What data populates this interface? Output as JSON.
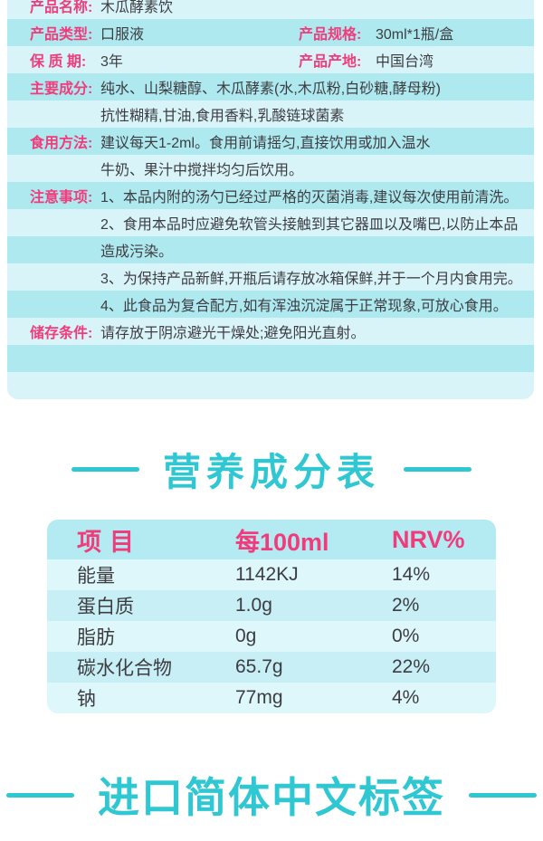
{
  "colors": {
    "pink": "#f13c7b",
    "teal": "#2fc7d2",
    "ink": "#3d3d41",
    "stripe-light": "#d9f4f9",
    "stripe-dark": "#aee9f0",
    "nut-header": "#b4eaf2",
    "nut-light": "#ddf7fb",
    "nut-dark": "#c7eff5"
  },
  "info_table": {
    "rows": [
      {
        "label": "产品名称:",
        "value": "木瓜酵素饮"
      },
      {
        "label": "产品类型:",
        "value": "口服液",
        "label2": "产品规格:",
        "value2": "30ml*1瓶/盒"
      },
      {
        "label": "保 质 期:",
        "value": "3年",
        "label2": "产品产地:",
        "value2": "中国台湾"
      },
      {
        "label": "主要成分:",
        "value": "纯水、山梨糖醇、木瓜酵素(水,木瓜粉,白砂糖,酵母粉)"
      },
      {
        "value": "抗性糊精,甘油,食用香料,乳酸链球菌素"
      },
      {
        "label": "食用方法:",
        "value": "建议每天1-2ml。食用前请摇匀,直接饮用或加入温水"
      },
      {
        "value": "牛奶、果汁中搅拌均匀后饮用。"
      },
      {
        "label": "注意事项:",
        "value": "1、本品内附的汤勺已经过严格的灭菌消毒,建议每次使用前清洗。"
      },
      {
        "value": "2、食用本品时应避免软管头接触到其它器皿以及嘴巴,以防止本品"
      },
      {
        "value": "造成污染。"
      },
      {
        "value": "3、为保持产品新鲜,开瓶后请存放冰箱保鲜,并于一个月内食用完。"
      },
      {
        "value": "4、此食品为复合配方,如有浑浊沉淀属于正常现象,可放心食用。"
      },
      {
        "label": "储存条件:",
        "value": "请存放于阴凉避光干燥处;避免阳光直射。"
      },
      {},
      {}
    ]
  },
  "nutrition": {
    "heading": "营养成分表",
    "columns": {
      "item": "项目",
      "per100ml": "每100ml",
      "nrv": "NRV%"
    },
    "rows": [
      {
        "item": "能量",
        "per100ml": "1142KJ",
        "nrv": "14%"
      },
      {
        "item": "蛋白质",
        "per100ml": "1.0g",
        "nrv": "2%"
      },
      {
        "item": "脂肪",
        "per100ml": "0g",
        "nrv": "0%"
      },
      {
        "item": "碳水化合物",
        "per100ml": "65.7g",
        "nrv": "22%"
      },
      {
        "item": "钠",
        "per100ml": "77mg",
        "nrv": "4%"
      }
    ]
  },
  "import_label_heading": "进口简体中文标签"
}
